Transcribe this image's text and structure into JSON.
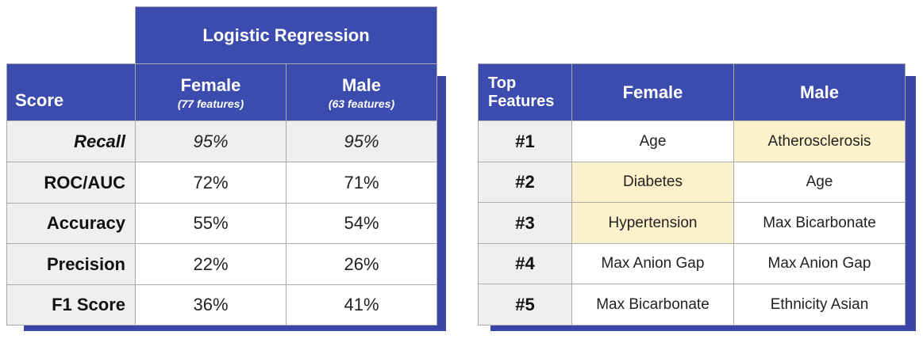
{
  "left_table": {
    "group_header": "Logistic Regression",
    "score_header": "Score",
    "columns": [
      {
        "name": "Female",
        "sub": "(77 features)"
      },
      {
        "name": "Male",
        "sub": "(63 features)"
      }
    ],
    "rows": [
      {
        "label": "Recall",
        "female": "95%",
        "male": "95%"
      },
      {
        "label": "ROC/AUC",
        "female": "72%",
        "male": "71%"
      },
      {
        "label": "Accuracy",
        "female": "55%",
        "male": "54%"
      },
      {
        "label": "Precision",
        "female": "22%",
        "male": "26%"
      },
      {
        "label": "F1 Score",
        "female": "36%",
        "male": "41%"
      }
    ]
  },
  "right_table": {
    "corner_header": "Top Features",
    "columns": [
      "Female",
      "Male"
    ],
    "rows": [
      {
        "rank": "#1",
        "female": "Age",
        "male": "Atherosclerosis"
      },
      {
        "rank": "#2",
        "female": "Diabetes",
        "male": "Age"
      },
      {
        "rank": "#3",
        "female": "Hypertension",
        "male": "Max Bicarbonate"
      },
      {
        "rank": "#4",
        "female": "Max Anion Gap",
        "male": "Max Anion Gap"
      },
      {
        "rank": "#5",
        "female": "Max Bicarbonate",
        "male": "Ethnicity Asian"
      }
    ],
    "highlighted_cells": [
      "#1 male",
      "#2 female",
      "#3 female"
    ],
    "highlight_color": "#fdf1cc"
  },
  "colors": {
    "header": "#3b4cae",
    "label_bg": "#efefef",
    "shadow": "#3b45a6"
  }
}
